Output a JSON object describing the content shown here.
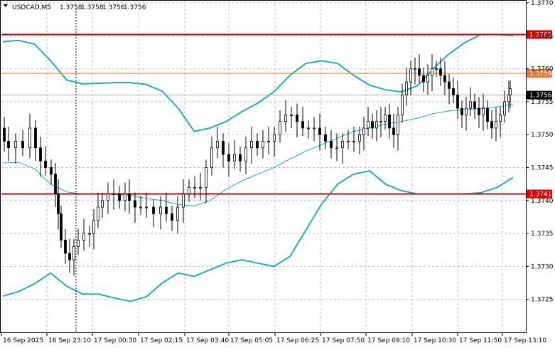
{
  "header": {
    "symbol": "USDCAD,M5",
    "o": "1.3758",
    "h": "1.3758",
    "l": "1.3756",
    "c": "1.3756"
  },
  "colors": {
    "background": "#ffffff",
    "grid": "#c0c0c0",
    "candle": "#000000",
    "bollinger": "#20b2aa",
    "ma": "#20b2aa",
    "resistance": "#e00000",
    "level_orange": "#e87830",
    "current_price": "#000000"
  },
  "chart_data": {
    "type": "candlestick",
    "title": "USDCAD,M5",
    "ylim": [
      1.372,
      1.3771
    ],
    "y_ticks": [
      "1.3770",
      "1.3765",
      "1.3760",
      "1.3755",
      "1.3750",
      "1.3745",
      "1.3740",
      "1.3735",
      "1.3730",
      "1.3725"
    ],
    "x_ticks": [
      "16 Sep 2025",
      "16 Sep 23:10",
      "17 Sep 00:30",
      "17 Sep 02:15",
      "17 Sep 03:40",
      "17 Sep 05:05",
      "17 Sep 06:25",
      "17 Sep 07:50",
      "17 Sep 09:10",
      "17 Sep 10:30",
      "17 Sep 11:50",
      "17 Sep 13:10"
    ],
    "horizontal_lines": [
      {
        "label": "1.3765",
        "value": 1.37652,
        "color": "#e00000",
        "style": "solid"
      },
      {
        "label": "1.3759",
        "value": 1.37593,
        "color": "#e87830",
        "style": "solid"
      },
      {
        "label": "1.3756",
        "value": 1.3756,
        "color": "#9a9a9a",
        "style": "thin"
      },
      {
        "label": "1.3741",
        "value": 1.3741,
        "color": "#e00000",
        "style": "solid"
      }
    ],
    "current_price": "1.3756",
    "bollinger_upper": [
      1.37641,
      1.37643,
      1.37637,
      1.37612,
      1.37583,
      1.37577,
      1.37578,
      1.37579,
      1.37579,
      1.37576,
      1.37566,
      1.3754,
      1.37505,
      1.3751,
      1.3752,
      1.37535,
      1.37548,
      1.37565,
      1.3759,
      1.37608,
      1.37612,
      1.37608,
      1.3759,
      1.37575,
      1.37568,
      1.37565,
      1.37574,
      1.376,
      1.37623,
      1.3764,
      1.37652,
      1.37652,
      1.3765
    ],
    "bollinger_middle": [
      1.37457,
      1.37458,
      1.37448,
      1.37425,
      1.37413,
      1.3741,
      1.3741,
      1.37409,
      1.37408,
      1.37403,
      1.374,
      1.37394,
      1.37392,
      1.374,
      1.37417,
      1.3743,
      1.3744,
      1.3745,
      1.37463,
      1.37475,
      1.37485,
      1.37495,
      1.37505,
      1.3751,
      1.37516,
      1.3752,
      1.37525,
      1.37532,
      1.37536,
      1.37538,
      1.3754,
      1.37542,
      1.37546
    ],
    "bollinger_lower": [
      1.37255,
      1.37262,
      1.37274,
      1.3729,
      1.3727,
      1.37258,
      1.37258,
      1.37252,
      1.37247,
      1.37254,
      1.37275,
      1.3729,
      1.37285,
      1.37295,
      1.37305,
      1.3731,
      1.37305,
      1.373,
      1.37315,
      1.37355,
      1.37395,
      1.37425,
      1.3744,
      1.37445,
      1.37425,
      1.37415,
      1.3741,
      1.3741,
      1.3741,
      1.3741,
      1.37412,
      1.3742,
      1.37435
    ],
    "candles_note": "M5 OHLC bars from 16 Sep 2025 to 17 Sep 13:10"
  }
}
